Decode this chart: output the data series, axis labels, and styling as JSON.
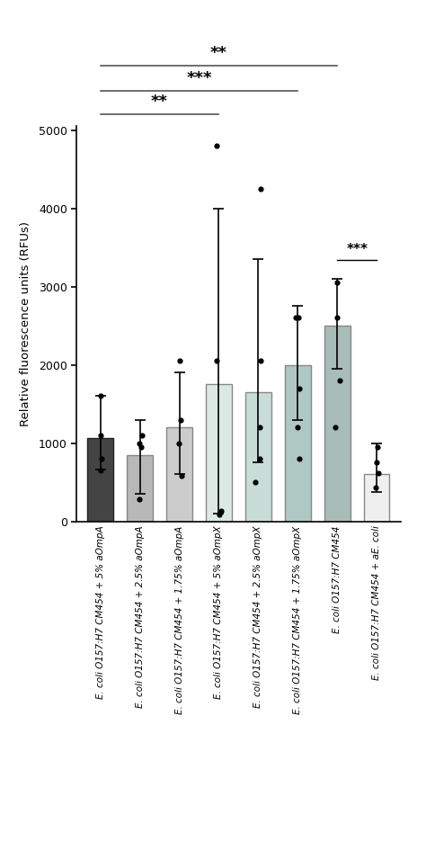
{
  "categories": [
    "E. coli O157:H7 CM454 + 5% aOmpA",
    "E. coli O157:H7 CM454 + 2.5% aOmpA",
    "E. coli O157:H7 CM454 + 1.75% aOmpA",
    "E. coli O157:H7 CM454 + 5% aOmpX",
    "E. coli O157:H7 CM454 + 2.5% aOmpX",
    "E. coli O157:H7 CM454 + 1.75% aOmpX",
    "E. coli O157:H7 CM454",
    "E. coli O157:H7 CM454 + aE. coli"
  ],
  "bar_heights": [
    1060,
    850,
    1200,
    1750,
    1650,
    2000,
    2500,
    600
  ],
  "error_upper": [
    550,
    450,
    700,
    2250,
    1700,
    750,
    600,
    400
  ],
  "error_lower": [
    400,
    500,
    600,
    1650,
    900,
    700,
    550,
    220
  ],
  "bar_colors": [
    "#444444",
    "#b8b8b8",
    "#cccccc",
    "#dce8e4",
    "#c8dcd8",
    "#b0c8c4",
    "#a8bcb8",
    "#efefef"
  ],
  "bar_edge_colors": [
    "#222222",
    "#888888",
    "#888888",
    "#888888",
    "#888888",
    "#888888",
    "#888888",
    "#888888"
  ],
  "dot_data": [
    [
      650,
      800,
      1100,
      1600
    ],
    [
      280,
      950,
      1000,
      1100
    ],
    [
      580,
      1000,
      1300,
      2050
    ],
    [
      90,
      140,
      2050,
      4800
    ],
    [
      500,
      800,
      1200,
      2050,
      4250
    ],
    [
      800,
      1200,
      1700,
      2600,
      2600
    ],
    [
      1200,
      1800,
      2600,
      3050
    ],
    [
      430,
      620,
      750,
      950
    ]
  ],
  "ylabel": "Relative fluorescence units (RFUs)",
  "ylim": [
    0,
    5050
  ],
  "yticks": [
    0,
    1000,
    2000,
    3000,
    4000,
    5000
  ],
  "bracket_line_color": "#555555",
  "bracket_font_size": 13
}
